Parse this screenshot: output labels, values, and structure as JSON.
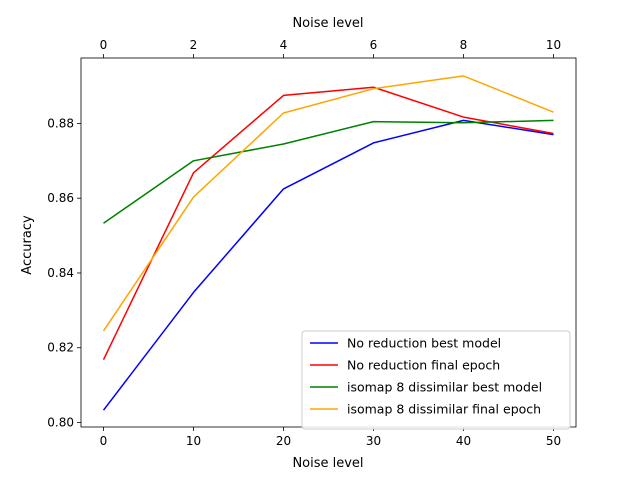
{
  "chart_data": {
    "type": "line",
    "xlabel": "Noise level",
    "top_xlabel": "Noise level",
    "ylabel": "Accuracy",
    "x": [
      0,
      10,
      20,
      30,
      40,
      50
    ],
    "xlim": [
      -2.5,
      52.5
    ],
    "ylim": [
      0.7988,
      0.8975
    ],
    "xticks": [
      0,
      10,
      20,
      30,
      40,
      50
    ],
    "yticks": [
      0.8,
      0.82,
      0.84,
      0.86,
      0.88
    ],
    "ytick_labels": [
      "0.80",
      "0.82",
      "0.84",
      "0.86",
      "0.88"
    ],
    "top_xticks": [
      0,
      2,
      4,
      6,
      8,
      10
    ],
    "grid": false,
    "legend_position": "lower-right",
    "series": [
      {
        "name": "No reduction best model",
        "color": "#0000ff",
        "values": [
          0.8033,
          0.8348,
          0.8625,
          0.8748,
          0.8808,
          0.877
        ]
      },
      {
        "name": "No reduction final epoch",
        "color": "#ff0000",
        "values": [
          0.8168,
          0.8668,
          0.8875,
          0.8897,
          0.8817,
          0.8773
        ]
      },
      {
        "name": "isomap 8 dissimilar best model",
        "color": "#008000",
        "values": [
          0.8533,
          0.87,
          0.8745,
          0.8805,
          0.8802,
          0.8808
        ]
      },
      {
        "name": "isomap 8 dissimilar final epoch",
        "color": "#ffa500",
        "values": [
          0.8245,
          0.8603,
          0.8828,
          0.8893,
          0.8927,
          0.883
        ]
      }
    ]
  }
}
